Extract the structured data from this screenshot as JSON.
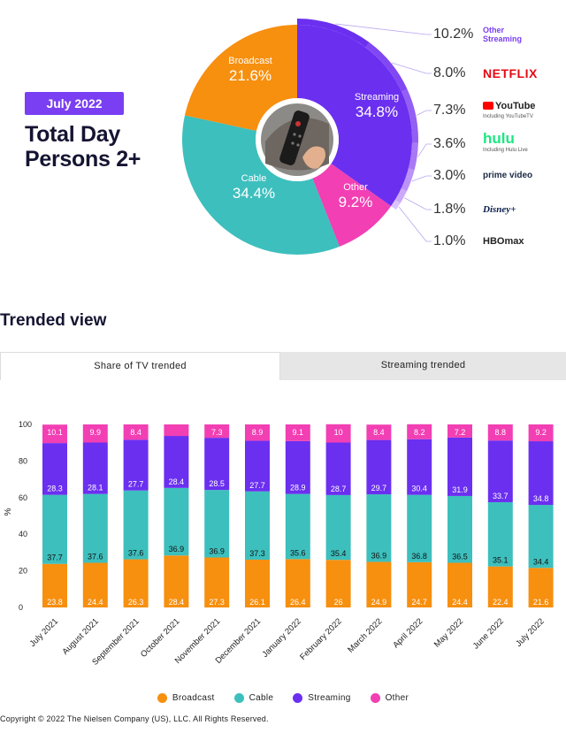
{
  "header": {
    "badge": "July 2022",
    "title_line1": "Total Day",
    "title_line2": "Persons 2+"
  },
  "donut": {
    "segments": [
      {
        "name": "Streaming",
        "value": 34.8,
        "label": "34.8%",
        "color": "#6b2ff0"
      },
      {
        "name": "Other",
        "value": 9.2,
        "label": "9.2%",
        "color": "#f23fb3"
      },
      {
        "name": "Cable",
        "value": 34.4,
        "label": "34.4%",
        "color": "#3dbfbd"
      },
      {
        "name": "Broadcast",
        "value": 21.6,
        "label": "21.6%",
        "color": "#f78f0f"
      }
    ],
    "streaming_breakdown": [
      {
        "value": 10.2,
        "label": "10.2%",
        "service": "Other Streaming",
        "sub": "",
        "color": "#7b3ff2"
      },
      {
        "value": 8.0,
        "label": "8.0%",
        "service": "NETFLIX",
        "sub": "",
        "color": "#e50914"
      },
      {
        "value": 7.3,
        "label": "7.3%",
        "service": "YouTube",
        "sub": "Including YouTubeTV",
        "color": "#222222"
      },
      {
        "value": 3.6,
        "label": "3.6%",
        "service": "hulu",
        "sub": "Including Hulu Live",
        "color": "#1ce783"
      },
      {
        "value": 3.0,
        "label": "3.0%",
        "service": "prime video",
        "sub": "",
        "color": "#1a2a44"
      },
      {
        "value": 1.8,
        "label": "1.8%",
        "service": "Disney+",
        "sub": "",
        "color": "#0b1f4d"
      },
      {
        "value": 1.0,
        "label": "1.0%",
        "service": "HBOmax",
        "sub": "",
        "color": "#222222"
      }
    ]
  },
  "trended": {
    "section_title": "Trended view",
    "tabs": [
      "Share of TV trended",
      "Streaming trended"
    ]
  },
  "chart_data": {
    "type": "bar",
    "stacked": true,
    "ylabel": "%",
    "ylim": [
      0,
      100
    ],
    "yticks": [
      0,
      20,
      40,
      60,
      80,
      100
    ],
    "categories": [
      "July 2021",
      "August 2021",
      "September 2021",
      "October 2021",
      "November 2021",
      "December 2021",
      "January 2022",
      "February 2022",
      "March 2022",
      "April 2022",
      "May 2022",
      "June 2022",
      "July 2022"
    ],
    "series": [
      {
        "name": "Broadcast",
        "color": "#f78f0f",
        "values": [
          23.8,
          24.4,
          26.3,
          28.4,
          27.3,
          26.1,
          26.4,
          26,
          24.9,
          24.7,
          24.4,
          22.4,
          21.6
        ],
        "labels": [
          "23.8",
          "24.4",
          "26.3",
          "28.4",
          "27.3",
          "26.1",
          "26.4",
          "26",
          "24.9",
          "24.7",
          "24.4",
          "22.4",
          "21.6"
        ]
      },
      {
        "name": "Cable",
        "color": "#3dbfbd",
        "values": [
          37.7,
          37.6,
          37.6,
          36.9,
          36.9,
          37.3,
          35.6,
          35.4,
          36.9,
          36.8,
          36.5,
          35.1,
          34.4
        ],
        "labels": [
          "37.7",
          "37.6",
          "37.6",
          "36.9",
          "36.9",
          "37.3",
          "35.6",
          "35.4",
          "36.9",
          "36.8",
          "36.5",
          "35.1",
          "34.4"
        ]
      },
      {
        "name": "Streaming",
        "color": "#6b2ff0",
        "values": [
          28.3,
          28.1,
          27.7,
          28.4,
          28.5,
          27.7,
          28.9,
          28.7,
          29.7,
          30.4,
          31.9,
          33.7,
          34.8
        ],
        "labels": [
          "28.3",
          "28.1",
          "27.7",
          "28.4",
          "28.5",
          "27.7",
          "28.9",
          "28.7",
          "29.7",
          "30.4",
          "31.9",
          "33.7",
          "34.8"
        ]
      },
      {
        "name": "Other",
        "color": "#f23fb3",
        "values": [
          10.1,
          9.9,
          8.4,
          6.3,
          7.3,
          8.9,
          9.1,
          10,
          8.4,
          8.2,
          7.2,
          8.8,
          9.2
        ],
        "labels": [
          "10.1",
          "9.9",
          "8.4",
          "",
          "7.3",
          "8.9",
          "9.1",
          "10",
          "8.4",
          "8.2",
          "7.2",
          "8.8",
          "9.2"
        ]
      }
    ],
    "legend": [
      "Broadcast",
      "Cable",
      "Streaming",
      "Other"
    ],
    "legend_position": "bottom"
  },
  "footer": {
    "copyright": "Copyright © 2022 The Nielsen Company (US), LLC. All Rights Reserved."
  }
}
